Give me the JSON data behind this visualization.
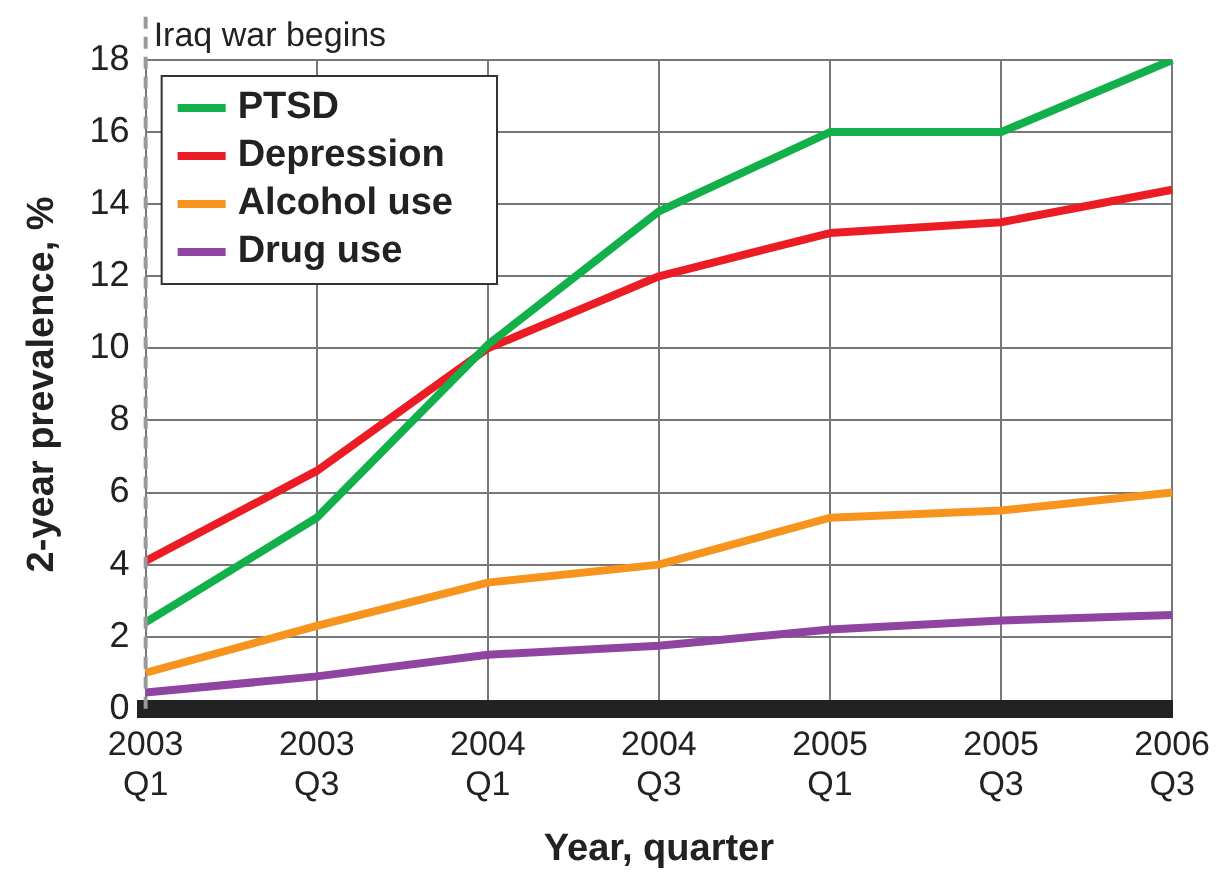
{
  "chart_data": {
    "type": "line",
    "xlabel": "Year, quarter",
    "ylabel": "2-year prevalence, %",
    "categories": [
      "2003\nQ1",
      "2003\nQ3",
      "2004\nQ1",
      "2004\nQ3",
      "2005\nQ1",
      "2005\nQ3",
      "2006\nQ3"
    ],
    "series": [
      {
        "name": "PTSD",
        "color": "#12b04a",
        "values": [
          2.4,
          5.3,
          10.1,
          13.8,
          16,
          16,
          18
        ]
      },
      {
        "name": "Depression",
        "color": "#ec1c24",
        "values": [
          4.1,
          6.6,
          10,
          12,
          13.2,
          13.5,
          14.4
        ]
      },
      {
        "name": "Alcohol use",
        "color": "#f7941d",
        "values": [
          1,
          2.3,
          3.5,
          4,
          5.3,
          5.5,
          6
        ]
      },
      {
        "name": "Drug use",
        "color": "#8e44a0",
        "values": [
          0.45,
          0.9,
          1.5,
          1.75,
          2.2,
          2.45,
          2.6
        ]
      }
    ],
    "ylim": [
      0,
      18
    ],
    "yticks": [
      0,
      2,
      4,
      6,
      8,
      10,
      12,
      14,
      16,
      18
    ],
    "grid": true,
    "legend": "top left",
    "marker": "none",
    "line_style": "solid",
    "ref_lines": [
      {
        "axis": "x",
        "value": "2003\nQ1",
        "label": "Iraq war begins",
        "color": "#999999",
        "line_style": "dashed"
      }
    ]
  }
}
